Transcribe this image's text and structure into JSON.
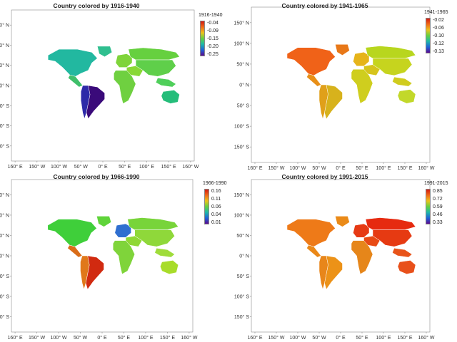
{
  "y_axis_labels": [
    "150° N",
    "100° N",
    "50° N",
    "0° N",
    "50° S",
    "100° S",
    "150° S"
  ],
  "x_axis_labels": [
    "160° E",
    "150° W",
    "100° W",
    "50° W",
    "0° E",
    "50° E",
    "100° E",
    "150° E",
    "160° W"
  ],
  "maps": [
    {
      "title": "Country colored by 1916-1940",
      "legend_title": "1916-1940",
      "legend_ticks": [
        "-0.04",
        "-0.09",
        "-0.15",
        "-0.20",
        "-0.25"
      ],
      "colors": {
        "north_america": "#22b8a0",
        "greenland": "#2fbf8f",
        "central_america": "#3fbf6a",
        "south_america": "#3a0a7a",
        "south_america_west": "#2d2aa8",
        "europe": "#7fd43a",
        "africa": "#6fd040",
        "middle_east": "#88d835",
        "russia": "#66d03f",
        "asia": "#5fcf4a",
        "se_asia": "#4fcf5a",
        "australia": "#25bd7a"
      }
    },
    {
      "title": "Country colored by 1941-1965",
      "legend_title": "1941-1965",
      "legend_ticks": [
        "-0.02",
        "-0.06",
        "-0.10",
        "-0.12",
        "-0.13"
      ],
      "colors": {
        "north_america": "#f06218",
        "greenland": "#e87818",
        "central_america": "#e88f18",
        "south_america": "#d7b21c",
        "south_america_west": "#e0a01a",
        "europe": "#e6b41a",
        "africa": "#cfce1e",
        "middle_east": "#d6c41c",
        "russia": "#b8d61e",
        "asia": "#c6d41e",
        "se_asia": "#d0cc1e",
        "australia": "#c2d82a"
      }
    },
    {
      "title": "Country colored by 1966-1990",
      "legend_title": "1966-1990",
      "legend_ticks": [
        "0.16",
        "0.11",
        "0.06",
        "0.04",
        "0.01"
      ],
      "colors": {
        "north_america": "#3fcf3a",
        "greenland": "#5fd43a",
        "central_america": "#d96c18",
        "south_america": "#d12a10",
        "south_america_west": "#e0781a",
        "europe": "#2f6fd0",
        "africa": "#7fd43a",
        "middle_east": "#8fd835",
        "russia": "#78d43a",
        "asia": "#8fd83a",
        "se_asia": "#9fdc3a",
        "australia": "#a8dc2a"
      }
    },
    {
      "title": "Country colored by 1991-2015",
      "legend_title": "1991-2015",
      "legend_ticks": [
        "0.85",
        "0.72",
        "0.59",
        "0.46",
        "0.33"
      ],
      "colors": {
        "north_america": "#ee7a18",
        "greenland": "#ea8a18",
        "central_america": "#ea8818",
        "south_america": "#ec9218",
        "south_america_west": "#e8861a",
        "europe": "#e63a14",
        "africa": "#e6861a",
        "middle_east": "#e84a14",
        "russia": "#e62a10",
        "asia": "#e63a12",
        "se_asia": "#e8541a",
        "australia": "#e8501a"
      }
    }
  ]
}
